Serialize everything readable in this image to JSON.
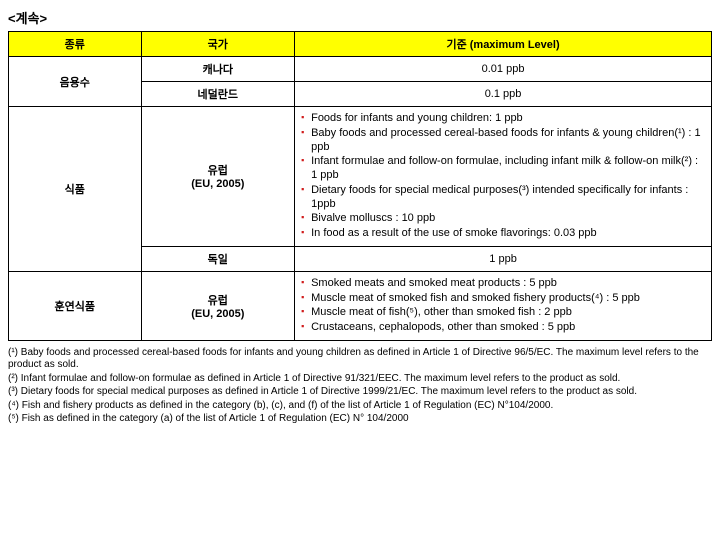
{
  "title": "<계속>",
  "header": {
    "c1": "종류",
    "c2": "국가",
    "c3": "기준 (maximum Level)"
  },
  "r1": {
    "cat": "음용수",
    "country": "캐나다",
    "std": "0.01 ppb"
  },
  "r2": {
    "country": "네덜란드",
    "std": "0.1 ppb"
  },
  "r3": {
    "cat": "식품",
    "country": "유럽\n(EU, 2005)",
    "b1": "Foods for infants and young children: 1 ppb",
    "b2": "Baby foods and processed cereal-based foods for infants & young children(¹) : 1 ppb",
    "b3": "Infant formulae and follow-on formulae, including infant milk & follow-on milk(²) : 1 ppb",
    "b4": "Dietary foods for special medical purposes(³) intended specifically for infants : 1ppb",
    "b5": "Bivalve molluscs : 10 ppb",
    "b6": "In food as a result of the use of smoke flavorings: 0.03 ppb"
  },
  "r4": {
    "country": "독일",
    "std": "1 ppb"
  },
  "r5": {
    "cat": "훈연식품",
    "country": "유럽\n(EU, 2005)",
    "b1": "Smoked meats and smoked meat products : 5 ppb",
    "b2": "Muscle meat of smoked fish and smoked fishery products(⁴) : 5 ppb",
    "b3": "Muscle meat of fish(⁵), other than smoked fish : 2 ppb",
    "b4": "Crustaceans, cephalopods, other than smoked : 5 ppb"
  },
  "fn": {
    "f1": "(¹) Baby foods and processed cereal-based foods for infants and young children as defined in Article 1 of Directive 96/5/EC. The maximum level refers to the product as sold.",
    "f2": "(²) Infant formulae and follow-on formulae as defined in Article 1 of Directive 91/321/EEC. The maximum level refers to the product as sold.",
    "f3": "(³) Dietary foods for special medical purposes as defined in Article 1 of Directive 1999/21/EC. The maximum level refers to the product as sold.",
    "f4": "(⁴) Fish and fishery products as defined in the category (b), (c), and (f) of the list of Article 1 of Regulation (EC) N°104/2000.",
    "f5": "(⁵) Fish as defined in the category (a) of the list of Article 1 of Regulation (EC) N° 104/2000"
  }
}
